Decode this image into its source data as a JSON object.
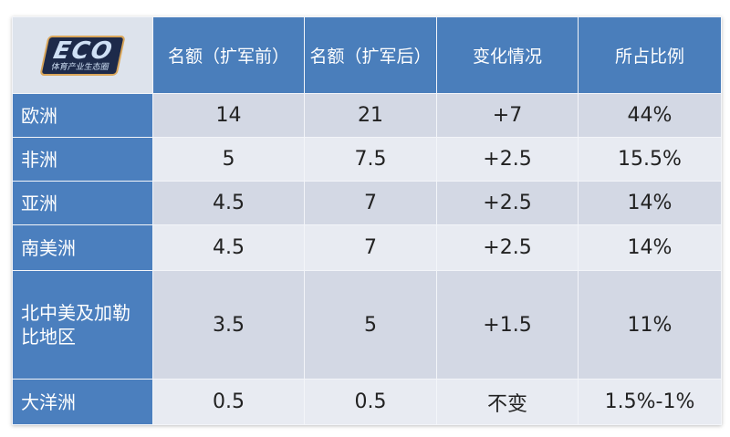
{
  "logo": {
    "text": "ECO",
    "subtext": "体育产业生态圈"
  },
  "headers": [
    "名额（扩军前）",
    "名额（扩军后）",
    "变化情况",
    "所占比例"
  ],
  "rows": [
    {
      "region": "欧洲",
      "before": "14",
      "after": "21",
      "change": "+7",
      "share": "44%"
    },
    {
      "region": "非洲",
      "before": "5",
      "after": "7.5",
      "change": "+2.5",
      "share": "15.5%"
    },
    {
      "region": "亚洲",
      "before": "4.5",
      "after": "7",
      "change": "+2.5",
      "share": "14%"
    },
    {
      "region": "南美洲",
      "before": "4.5",
      "after": "7",
      "change": "+2.5",
      "share": "14%"
    },
    {
      "region": "北中美及加勒比地区",
      "before": "3.5",
      "after": "5",
      "change": "+1.5",
      "share": "11%"
    },
    {
      "region": "大洋洲",
      "before": "0.5",
      "after": "0.5",
      "change": "不变",
      "share": "1.5%-1%"
    }
  ],
  "colors": {
    "header": "#4a7ebb",
    "region": "#4b7fbe",
    "row_dark": "#d3d8e4",
    "row_light": "#e8ebf2"
  }
}
